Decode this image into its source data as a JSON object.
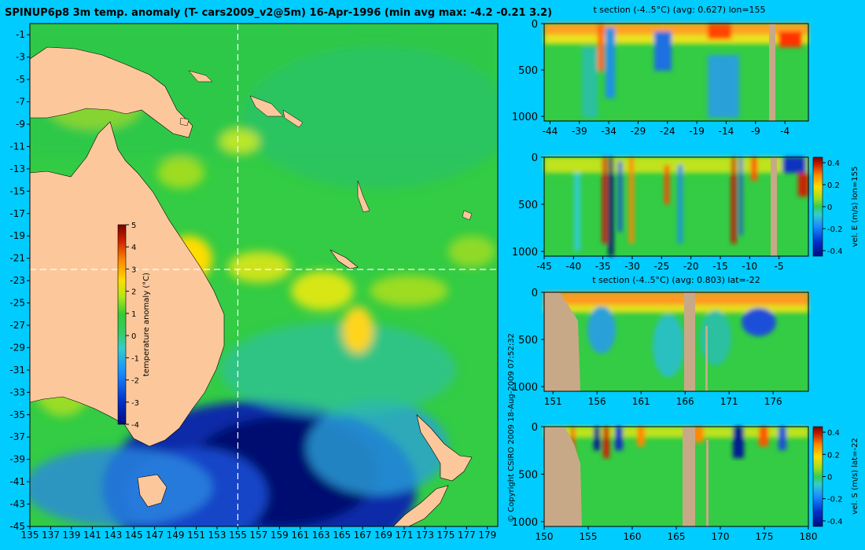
{
  "title": "SPINUP6p8 3m temp. anomaly (T- cars2009_v2@5m) 16-Apr-1996 (min avg max: -4.2 -0.21 3.2)",
  "copyright": "© Copyright CSIRO 2009   18-Aug-2009 07:52:32",
  "colors": {
    "background": "#00ccff",
    "land": "#fcc89b",
    "section_land": "#c8a987",
    "guide": "#ffffff"
  },
  "chart_data": [
    {
      "id": "map",
      "type": "heatmap",
      "xlim": [
        135,
        180
      ],
      "ylim": [
        -45,
        0
      ],
      "x_ticks": [
        "135",
        "137",
        "139",
        "141",
        "143",
        "145",
        "147",
        "149",
        "151",
        "153",
        "155",
        "157",
        "159",
        "161",
        "163",
        "165",
        "167",
        "169",
        "171",
        "173",
        "175",
        "177",
        "179"
      ],
      "x_tick_values": [
        135,
        137,
        139,
        141,
        143,
        145,
        147,
        149,
        151,
        153,
        155,
        157,
        159,
        161,
        163,
        165,
        167,
        169,
        171,
        173,
        175,
        177,
        179
      ],
      "y_ticks": [
        "-1",
        "-3",
        "-5",
        "-7",
        "-9",
        "-11",
        "-13",
        "-15",
        "-17",
        "-19",
        "-21",
        "-23",
        "-25",
        "-27",
        "-29",
        "-31",
        "-33",
        "-35",
        "-37",
        "-39",
        "-41",
        "-43",
        "-45"
      ],
      "y_tick_values": [
        -1,
        -3,
        -5,
        -7,
        -9,
        -11,
        -13,
        -15,
        -17,
        -19,
        -21,
        -23,
        -25,
        -27,
        -29,
        -31,
        -33,
        -35,
        -37,
        -39,
        -41,
        -43,
        -45
      ],
      "guide_lon": 155,
      "guide_lat": -22,
      "colorbar": {
        "label": "temperature anomaly (°C)",
        "ticks": [
          "5",
          "4",
          "3",
          "2",
          "1",
          "0",
          "-1",
          "-2",
          "-3",
          "-4"
        ],
        "tick_values": [
          5,
          4,
          3,
          2,
          1,
          0,
          -1,
          -2,
          -3,
          -4
        ],
        "min": -4,
        "max": 5
      }
    },
    {
      "id": "section1",
      "type": "heatmap",
      "title": "t section (-4..5°C) (avg: 0.627) lon=155",
      "xlim": [
        -45,
        0
      ],
      "ylim": [
        1050,
        0
      ],
      "x_ticks": [
        "-44",
        "-39",
        "-34",
        "-29",
        "-24",
        "-19",
        "-14",
        "-9",
        "-4"
      ],
      "x_tick_values": [
        -44,
        -39,
        -34,
        -29,
        -24,
        -19,
        -14,
        -9,
        -4
      ],
      "y_ticks": [
        "0",
        "500",
        "1000"
      ],
      "y_tick_values": [
        0,
        500,
        1000
      ]
    },
    {
      "id": "section2",
      "type": "heatmap",
      "xlim": [
        -45,
        0
      ],
      "ylim": [
        1050,
        0
      ],
      "x_ticks": [
        "-45",
        "-40",
        "-35",
        "-30",
        "-25",
        "-20",
        "-15",
        "-10",
        "-5"
      ],
      "x_tick_values": [
        -45,
        -40,
        -35,
        -30,
        -25,
        -20,
        -15,
        -10,
        -5
      ],
      "y_ticks": [
        "0",
        "500",
        "1000"
      ],
      "y_tick_values": [
        0,
        500,
        1000
      ],
      "colorbar": {
        "label": "vel. E (m/s) lon=155",
        "ticks": [
          "0.4",
          "0.2",
          "0",
          "-0.2",
          "-0.4"
        ],
        "tick_values": [
          0.4,
          0.2,
          0,
          -0.2,
          -0.4
        ],
        "min": -0.45,
        "max": 0.45
      }
    },
    {
      "id": "section3",
      "type": "heatmap",
      "title": "t section (-4..5°C) (avg: 0.803) lat=-22",
      "xlim": [
        150,
        180
      ],
      "ylim": [
        1050,
        0
      ],
      "x_ticks": [
        "151",
        "156",
        "161",
        "166",
        "171",
        "176"
      ],
      "x_tick_values": [
        151,
        156,
        161,
        166,
        171,
        176
      ],
      "y_ticks": [
        "0",
        "500",
        "1000"
      ],
      "y_tick_values": [
        0,
        500,
        1000
      ]
    },
    {
      "id": "section4",
      "type": "heatmap",
      "xlim": [
        150,
        180
      ],
      "ylim": [
        1050,
        0
      ],
      "x_ticks": [
        "150",
        "155",
        "160",
        "165",
        "170",
        "175",
        "180"
      ],
      "x_tick_values": [
        150,
        155,
        160,
        165,
        170,
        175,
        180
      ],
      "y_ticks": [
        "0",
        "500",
        "1000"
      ],
      "y_tick_values": [
        0,
        500,
        1000
      ],
      "colorbar": {
        "label": "vel. S (m/s) lat=-22",
        "ticks": [
          "0.4",
          "0.2",
          "0",
          "-0.2",
          "-0.4"
        ],
        "tick_values": [
          0.4,
          0.2,
          0,
          -0.2,
          -0.4
        ],
        "min": -0.45,
        "max": 0.45
      }
    }
  ]
}
